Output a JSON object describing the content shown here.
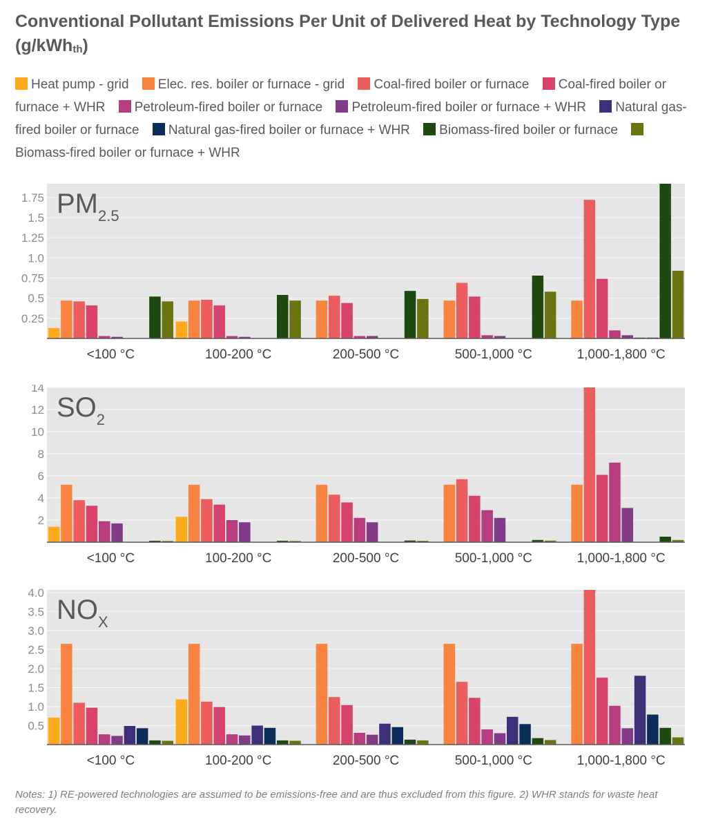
{
  "title": {
    "main": "Conventional Pollutant Emissions Per Unit of Delivered Heat by Technology Type (g/kWh",
    "sub": "th",
    "end": ")"
  },
  "legend": [
    {
      "name": "Heat pump - grid",
      "color": "#ffaa1a"
    },
    {
      "name": "Elec. res. boiler or furnace - grid",
      "color": "#f9843f"
    },
    {
      "name": "Coal-fired boiler or furnace",
      "color": "#ec5e5e"
    },
    {
      "name": "Coal-fired boiler or furnace + WHR",
      "color": "#d9426a"
    },
    {
      "name": "Petroleum-fired boiler or furnace",
      "color": "#b83d7e"
    },
    {
      "name": "Petroleum-fired boiler or furnace + WHR",
      "color": "#813b87"
    },
    {
      "name": "Natural gas-fired boiler or furnace",
      "color": "#3d2f78"
    },
    {
      "name": "Natural gas-fired boiler or furnace + WHR",
      "color": "#0b2d5a"
    },
    {
      "name": "Biomass-fired boiler or furnace",
      "color": "#1e4a11"
    },
    {
      "name": "Biomass-fired boiler or furnace + WHR",
      "color": "#6b7410"
    }
  ],
  "notes": "Notes: 1) RE-powered technologies are assumed to be emissions-free and are thus excluded from this figure. 2) WHR stands for waste heat recovery.",
  "chart_data": [
    {
      "type": "bar",
      "label_main": "PM",
      "label_sub": "2.5",
      "categories": [
        "<100 °C",
        "100-200 °C",
        "200-500 °C",
        "500-1,000 °C",
        "1,000-1,800 °C"
      ],
      "ylim": [
        0,
        1.92
      ],
      "yticks": [
        "0.25",
        "0.5",
        "0.75",
        "1.0",
        "1.25",
        "1.5",
        "1.75"
      ],
      "series": [
        {
          "name": "Heat pump - grid",
          "values": [
            0.13,
            0.21,
            null,
            null,
            null
          ]
        },
        {
          "name": "Elec. res. boiler or furnace - grid",
          "values": [
            0.47,
            0.47,
            0.47,
            0.47,
            0.47
          ]
        },
        {
          "name": "Coal-fired boiler or furnace",
          "values": [
            0.46,
            0.48,
            0.53,
            0.69,
            1.72
          ]
        },
        {
          "name": "Coal-fired boiler or furnace + WHR",
          "values": [
            0.41,
            0.41,
            0.44,
            0.52,
            0.74
          ]
        },
        {
          "name": "Petroleum-fired boiler or furnace",
          "values": [
            0.03,
            0.03,
            0.03,
            0.04,
            0.1
          ]
        },
        {
          "name": "Petroleum-fired boiler or furnace + WHR",
          "values": [
            0.02,
            0.02,
            0.03,
            0.03,
            0.04
          ]
        },
        {
          "name": "Natural gas-fired boiler or furnace",
          "values": [
            0.0,
            0.0,
            0.0,
            0.0,
            0.01
          ]
        },
        {
          "name": "Natural gas-fired boiler or furnace + WHR",
          "values": [
            0.0,
            0.0,
            0.0,
            0.0,
            0.01
          ]
        },
        {
          "name": "Biomass-fired boiler or furnace",
          "values": [
            0.52,
            0.54,
            0.59,
            0.78,
            1.93
          ]
        },
        {
          "name": "Biomass-fired boiler or furnace + WHR",
          "values": [
            0.46,
            0.47,
            0.49,
            0.58,
            0.84
          ]
        }
      ]
    },
    {
      "type": "bar",
      "label_main": "SO",
      "label_sub": "2",
      "categories": [
        "<100 °C",
        "100-200 °C",
        "200-500 °C",
        "500-1,000 °C",
        "1,000-1,800 °C"
      ],
      "ylim": [
        0,
        14
      ],
      "yticks": [
        "2",
        "4",
        "6",
        "8",
        "10",
        "12",
        "14"
      ],
      "series": [
        {
          "name": "Heat pump - grid",
          "values": [
            1.4,
            2.3,
            null,
            null,
            null
          ]
        },
        {
          "name": "Elec. res. boiler or furnace - grid",
          "values": [
            5.2,
            5.2,
            5.2,
            5.2,
            5.2
          ]
        },
        {
          "name": "Coal-fired boiler or furnace",
          "values": [
            3.8,
            3.9,
            4.3,
            5.7,
            14.1
          ]
        },
        {
          "name": "Coal-fired boiler or furnace + WHR",
          "values": [
            3.3,
            3.4,
            3.6,
            4.2,
            6.1
          ]
        },
        {
          "name": "Petroleum-fired boiler or furnace",
          "values": [
            1.9,
            2.0,
            2.2,
            2.9,
            7.2
          ]
        },
        {
          "name": "Petroleum-fired boiler or furnace + WHR",
          "values": [
            1.7,
            1.8,
            1.8,
            2.2,
            3.1
          ]
        },
        {
          "name": "Natural gas-fired boiler or furnace",
          "values": [
            0.0,
            0.0,
            0.0,
            0.0,
            0.0
          ]
        },
        {
          "name": "Natural gas-fired boiler or furnace + WHR",
          "values": [
            0.0,
            0.0,
            0.0,
            0.0,
            0.0
          ]
        },
        {
          "name": "Biomass-fired boiler or furnace",
          "values": [
            0.13,
            0.13,
            0.15,
            0.2,
            0.5
          ]
        },
        {
          "name": "Biomass-fired boiler or furnace + WHR",
          "values": [
            0.11,
            0.11,
            0.12,
            0.14,
            0.2
          ]
        }
      ]
    },
    {
      "type": "bar",
      "label_main": "NO",
      "label_sub": "X",
      "categories": [
        "<100 °C",
        "100-200 °C",
        "200-500 °C",
        "500-1,000 °C",
        "1,000-1,800 °C"
      ],
      "ylim": [
        0,
        4.07
      ],
      "yticks": [
        "0.5",
        "1.0",
        "1.5",
        "2.0",
        "2.5",
        "3.0",
        "3.5",
        "4.0"
      ],
      "series": [
        {
          "name": "Heat pump - grid",
          "values": [
            0.71,
            1.19,
            null,
            null,
            null
          ]
        },
        {
          "name": "Elec. res. boiler or furnace - grid",
          "values": [
            2.65,
            2.65,
            2.65,
            2.65,
            2.65
          ]
        },
        {
          "name": "Coal-fired boiler or furnace",
          "values": [
            1.1,
            1.13,
            1.25,
            1.65,
            4.09
          ]
        },
        {
          "name": "Coal-fired boiler or furnace + WHR",
          "values": [
            0.97,
            0.99,
            1.04,
            1.23,
            1.76
          ]
        },
        {
          "name": "Petroleum-fired boiler or furnace",
          "values": [
            0.27,
            0.27,
            0.31,
            0.4,
            1.02
          ]
        },
        {
          "name": "Petroleum-fired boiler or furnace + WHR",
          "values": [
            0.23,
            0.24,
            0.26,
            0.3,
            0.43
          ]
        },
        {
          "name": "Natural gas-fired boiler or furnace",
          "values": [
            0.49,
            0.5,
            0.55,
            0.73,
            1.81
          ]
        },
        {
          "name": "Natural gas-fired boiler or furnace + WHR",
          "values": [
            0.43,
            0.44,
            0.46,
            0.54,
            0.79
          ]
        },
        {
          "name": "Biomass-fired boiler or furnace",
          "values": [
            0.11,
            0.11,
            0.13,
            0.17,
            0.44
          ]
        },
        {
          "name": "Biomass-fired boiler or furnace + WHR",
          "values": [
            0.1,
            0.1,
            0.11,
            0.12,
            0.19
          ]
        }
      ]
    }
  ]
}
